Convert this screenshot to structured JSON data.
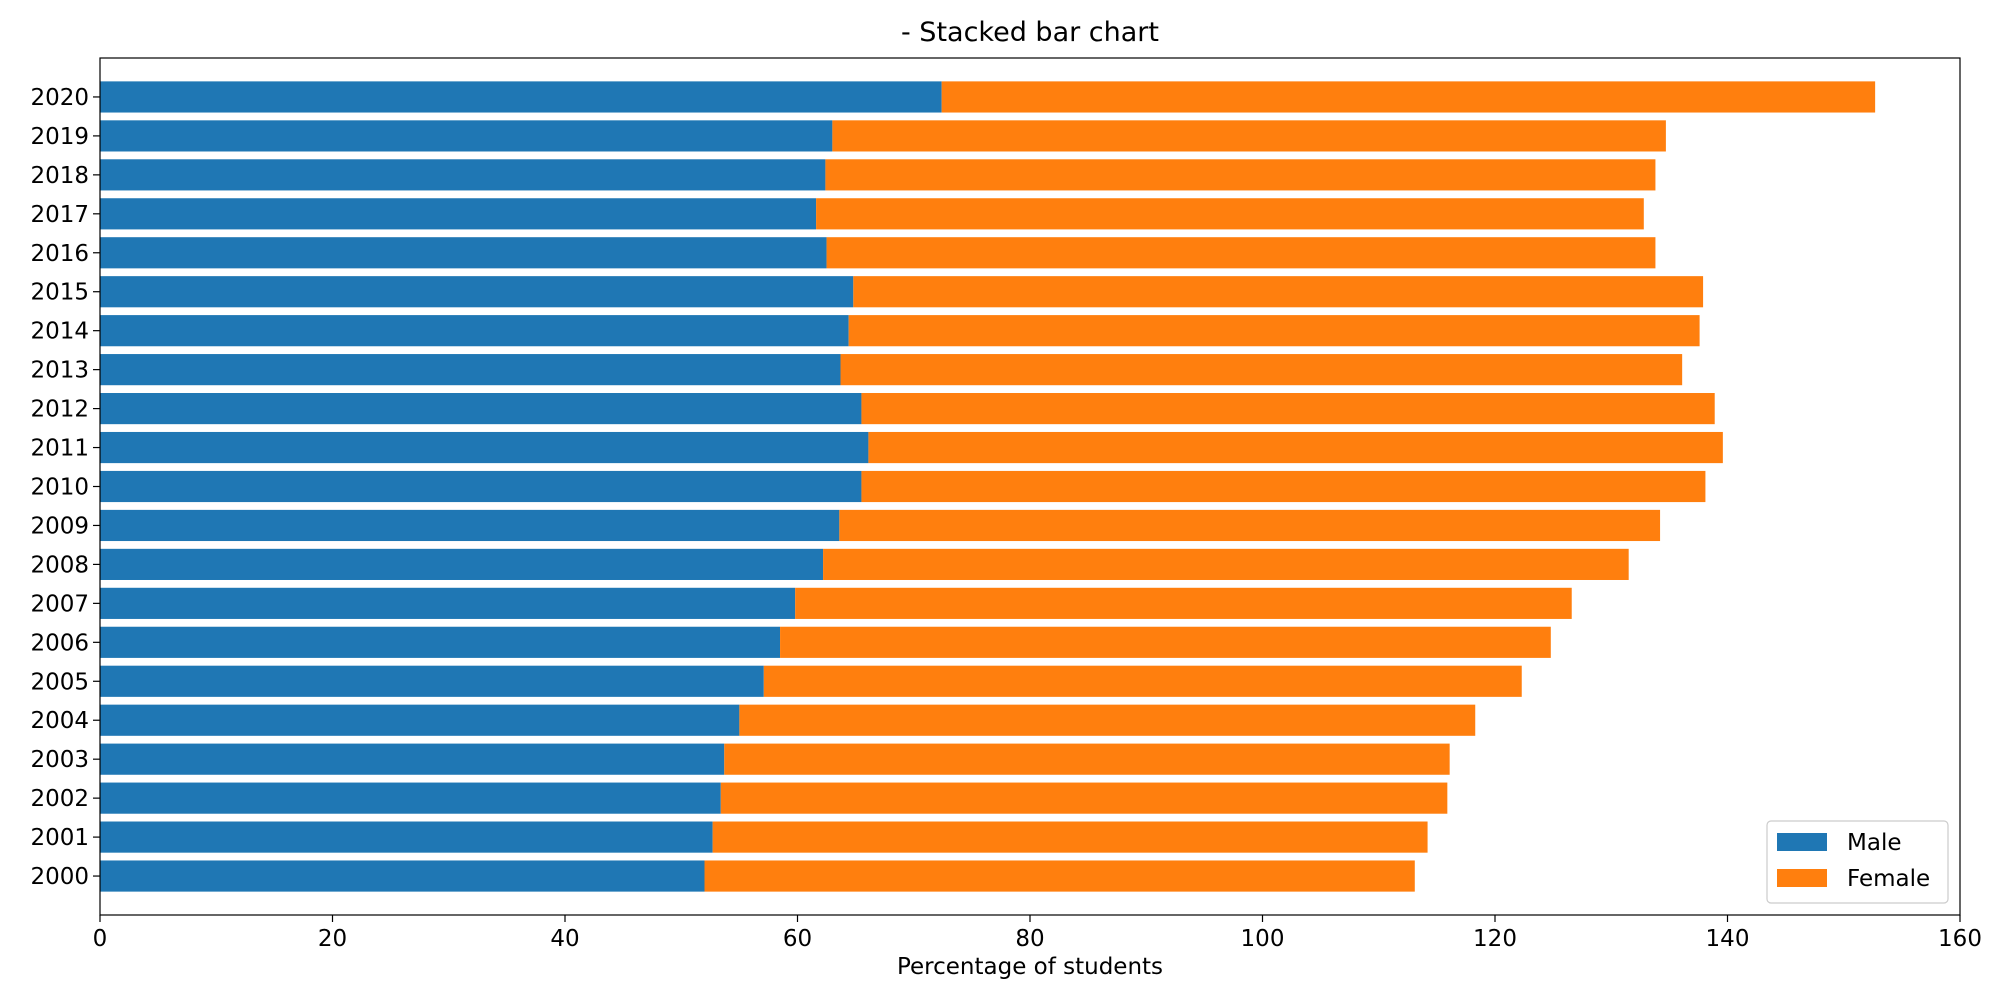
{
  "chart_data": {
    "type": "bar",
    "orientation": "horizontal",
    "stacked": true,
    "title": "- Stacked bar chart",
    "xlabel": "Percentage of students",
    "ylabel": "",
    "xlim": [
      0,
      160
    ],
    "xticks": [
      "0",
      "20",
      "40",
      "60",
      "80",
      "100",
      "120",
      "140",
      "160"
    ],
    "grid": false,
    "legend_position": "lower-right",
    "categories": [
      "2000",
      "2001",
      "2002",
      "2003",
      "2004",
      "2005",
      "2006",
      "2007",
      "2008",
      "2009",
      "2010",
      "2011",
      "2012",
      "2013",
      "2014",
      "2015",
      "2016",
      "2017",
      "2018",
      "2019",
      "2020"
    ],
    "series": [
      {
        "name": "Male",
        "color": "#1f77b4",
        "values": [
          52.0,
          52.7,
          53.4,
          53.7,
          55.0,
          57.1,
          58.5,
          59.8,
          62.2,
          63.6,
          65.5,
          66.1,
          65.5,
          63.7,
          64.4,
          64.8,
          62.5,
          61.6,
          62.4,
          63.0,
          72.4
        ]
      },
      {
        "name": "Female",
        "color": "#ff7f0e",
        "values": [
          61.1,
          61.5,
          62.5,
          62.4,
          63.3,
          65.2,
          66.3,
          66.8,
          69.3,
          70.6,
          72.6,
          73.5,
          73.4,
          72.4,
          73.2,
          73.1,
          71.3,
          71.2,
          71.4,
          71.7,
          80.3
        ]
      }
    ]
  }
}
